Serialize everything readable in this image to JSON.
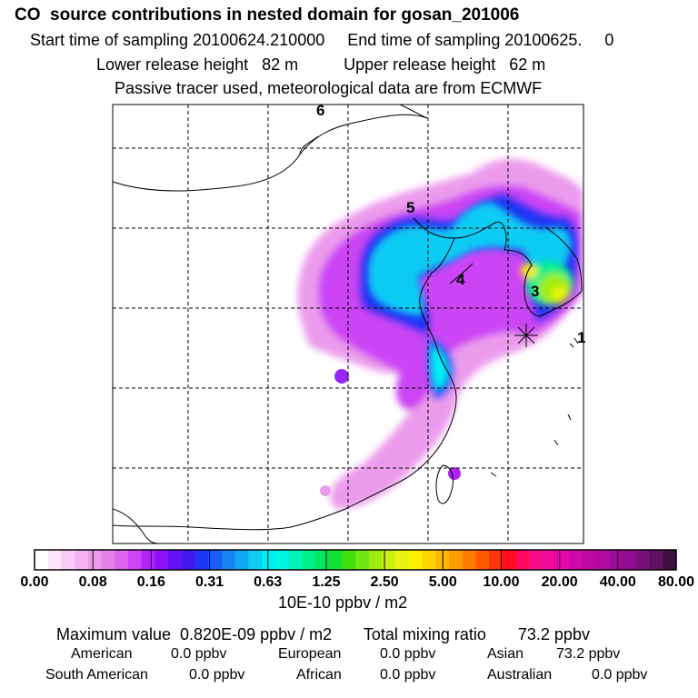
{
  "title": "CO  source contributions in nested domain for gosan_201006",
  "start_label": "Start time of sampling 20100624.210000",
  "end_label": "End time of sampling 20100625.     0",
  "lower_release": "Lower release height   82 m",
  "upper_release": "Upper release height   62 m",
  "tracer_note": "Passive tracer used, meteorological data are from ECMWF",
  "map_labels": [
    {
      "text": "6"
    },
    {
      "text": "5"
    },
    {
      "text": "4"
    },
    {
      "text": "3"
    },
    {
      "text": "1"
    }
  ],
  "colorbar": {
    "tick_labels": [
      "0.00",
      "0.08",
      "0.16",
      "0.31",
      "0.63",
      "1.25",
      "2.50",
      "5.00",
      "10.00",
      "20.00",
      "40.00",
      "80.00"
    ],
    "colors": [
      "#ffffff",
      "#fbe6fb",
      "#f6cdf6",
      "#f1b4f1",
      "#ec9bec",
      "#e682e6",
      "#dc64ee",
      "#cc44f4",
      "#b022f8",
      "#8c10f8",
      "#6410f4",
      "#4018f0",
      "#2036f4",
      "#1a5cf4",
      "#1882f4",
      "#10a8f4",
      "#10ccf4",
      "#00eef4",
      "#00f8e0",
      "#00f4b8",
      "#00f088",
      "#00e860",
      "#10e030",
      "#40e010",
      "#70e810",
      "#a0ec10",
      "#c8f010",
      "#e8f410",
      "#fff000",
      "#ffd400",
      "#ffb800",
      "#ff9c00",
      "#ff7c00",
      "#ff5a00",
      "#ff3410",
      "#ff0c20",
      "#ff0a60",
      "#f80c8c",
      "#f00a9c",
      "#e009a8",
      "#d008ac",
      "#c008a8",
      "#b00aa0",
      "#a00c98",
      "#900c90",
      "#781078",
      "#601060",
      "#401040"
    ],
    "unit": "10E-10 ppbv / m2"
  },
  "summary": {
    "max_line": "Maximum value  0.820E-09 ppbv / m2       Total mixing ratio       73.2 ppbv",
    "rows": [
      [
        {
          "name": "American",
          "value": "0.0 ppbv"
        },
        {
          "name": "European",
          "value": "0.0 ppbv"
        },
        {
          "name": "Asian",
          "value": "73.2 ppbv"
        }
      ],
      [
        {
          "name": "South American",
          "value": "0.0 ppbv"
        },
        {
          "name": "African",
          "value": "0.0 ppbv"
        },
        {
          "name": "Australian",
          "value": "0.0 ppbv"
        }
      ]
    ]
  }
}
